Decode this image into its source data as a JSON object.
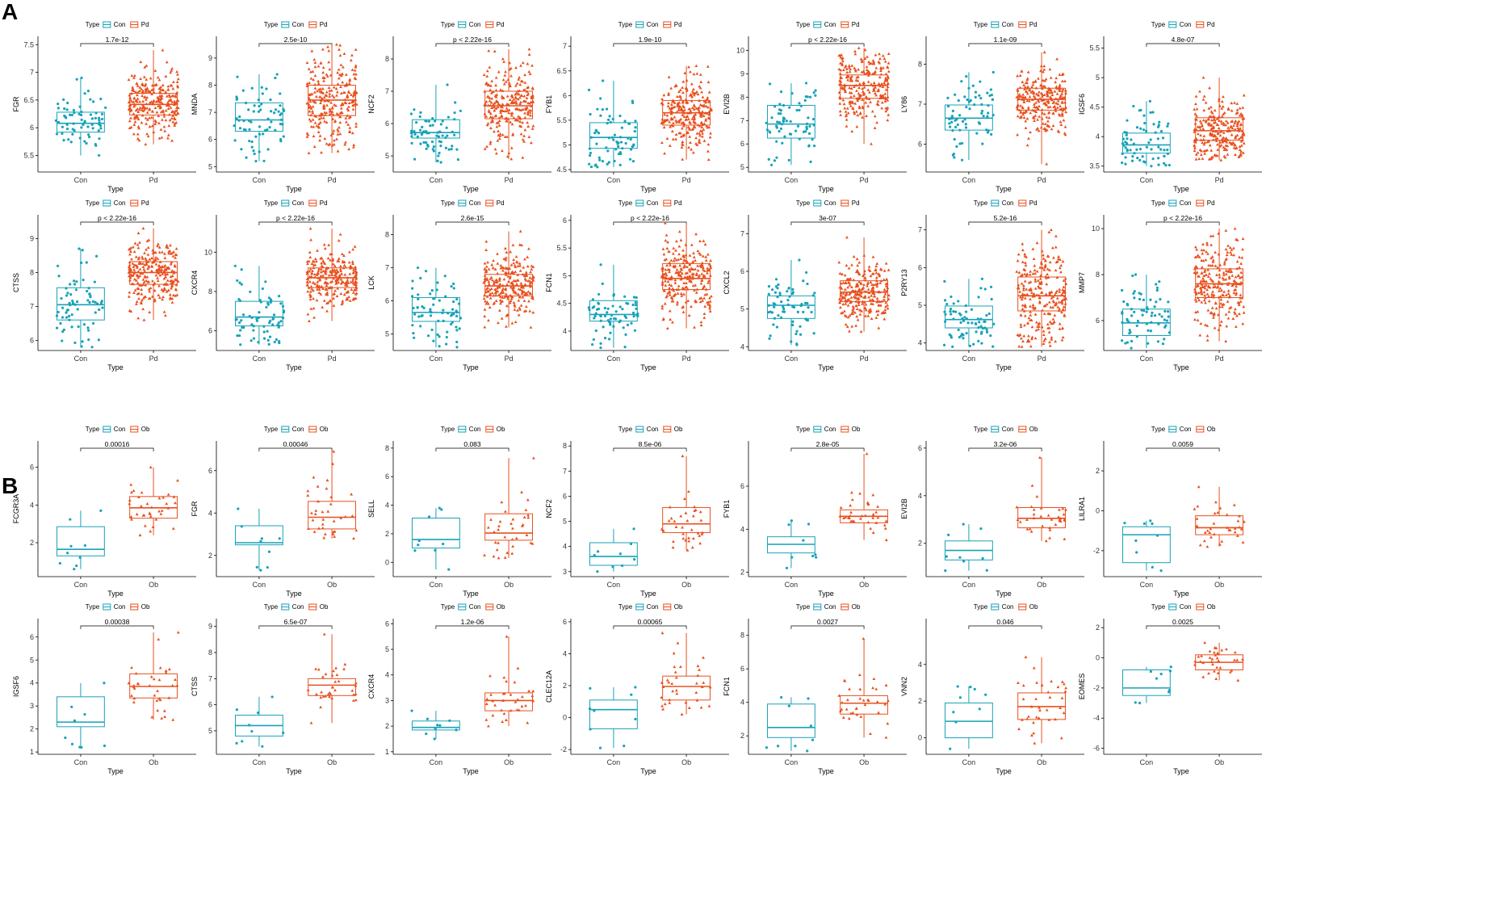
{
  "colors": {
    "con": "#17A2B8",
    "case": "#E8501E",
    "axis": "#000000"
  },
  "panels": [
    {
      "letter": "A",
      "case_label": "Pd",
      "legend_title": "Type",
      "x_title": "Type",
      "con_label": "Con"
    },
    {
      "letter": "B",
      "case_label": "Ob",
      "legend_title": "Type",
      "x_title": "Type",
      "con_label": "Con"
    }
  ],
  "chart_data": [
    {
      "type": "box",
      "panel": "A",
      "gene": "FGR",
      "pvalue": "1.7e-12",
      "yticks": [
        5.5,
        6.0,
        6.5,
        7.0,
        7.5
      ],
      "ylim": [
        5.2,
        7.65
      ],
      "groups": [
        "Con",
        "Pd"
      ],
      "con": {
        "q1": 5.92,
        "median": 6.08,
        "q3": 6.28,
        "min": 5.5,
        "max": 6.9
      },
      "case": {
        "q1": 6.23,
        "median": 6.42,
        "q3": 6.62,
        "min": 5.7,
        "max": 7.4
      },
      "n_con": 70,
      "n_case": 260
    },
    {
      "type": "box",
      "panel": "A",
      "gene": "MNDA",
      "pvalue": "2.5e-10",
      "yticks": [
        5,
        6,
        7,
        8,
        9
      ],
      "ylim": [
        4.8,
        9.8
      ],
      "groups": [
        "Con",
        "Pd"
      ],
      "con": {
        "q1": 6.3,
        "median": 6.72,
        "q3": 7.35,
        "min": 5.2,
        "max": 8.4
      },
      "case": {
        "q1": 6.88,
        "median": 7.45,
        "q3": 8.0,
        "min": 5.5,
        "max": 9.5
      },
      "n_con": 70,
      "n_case": 260
    },
    {
      "type": "box",
      "panel": "A",
      "gene": "NCF2",
      "pvalue": "p < 2.22e-16",
      "yticks": [
        5,
        6,
        7,
        8
      ],
      "ylim": [
        4.5,
        8.7
      ],
      "groups": [
        "Con",
        "Pd"
      ],
      "con": {
        "q1": 5.55,
        "median": 5.72,
        "q3": 6.12,
        "min": 4.8,
        "max": 7.2
      },
      "case": {
        "q1": 6.15,
        "median": 6.55,
        "q3": 7.0,
        "min": 4.9,
        "max": 8.3
      },
      "n_con": 70,
      "n_case": 260
    },
    {
      "type": "box",
      "panel": "A",
      "gene": "FYB1",
      "pvalue": "1.9e-10",
      "yticks": [
        4.5,
        5.0,
        5.5,
        6.0,
        6.5,
        7.0
      ],
      "ylim": [
        4.45,
        7.2
      ],
      "groups": [
        "Con",
        "Pd"
      ],
      "con": {
        "q1": 4.93,
        "median": 5.15,
        "q3": 5.45,
        "min": 4.55,
        "max": 6.3
      },
      "case": {
        "q1": 5.4,
        "median": 5.65,
        "q3": 5.9,
        "min": 4.7,
        "max": 6.6
      },
      "n_con": 70,
      "n_case": 260
    },
    {
      "type": "box",
      "panel": "A",
      "gene": "EVI2B",
      "pvalue": "p < 2.22e-16",
      "yticks": [
        5,
        6,
        7,
        8,
        9,
        10
      ],
      "ylim": [
        4.8,
        10.6
      ],
      "groups": [
        "Con",
        "Pd"
      ],
      "con": {
        "q1": 6.25,
        "median": 6.85,
        "q3": 7.65,
        "min": 5.1,
        "max": 8.6
      },
      "case": {
        "q1": 7.95,
        "median": 8.5,
        "q3": 8.95,
        "min": 6.0,
        "max": 10.1
      },
      "n_con": 70,
      "n_case": 260
    },
    {
      "type": "box",
      "panel": "A",
      "gene": "LY86",
      "pvalue": "1.1e-09",
      "yticks": [
        6,
        7,
        8
      ],
      "ylim": [
        5.3,
        8.7
      ],
      "groups": [
        "Con",
        "Pd"
      ],
      "con": {
        "q1": 6.35,
        "median": 6.65,
        "q3": 6.98,
        "min": 5.6,
        "max": 7.8
      },
      "case": {
        "q1": 6.85,
        "median": 7.12,
        "q3": 7.4,
        "min": 5.5,
        "max": 8.3
      },
      "n_con": 70,
      "n_case": 260
    },
    {
      "type": "box",
      "panel": "A",
      "gene": "IGSF6",
      "pvalue": "4.8e-07",
      "yticks": [
        3.5,
        4.0,
        4.5,
        5.0,
        5.5
      ],
      "ylim": [
        3.4,
        5.7
      ],
      "groups": [
        "Con",
        "Pd"
      ],
      "con": {
        "q1": 3.72,
        "median": 3.86,
        "q3": 4.06,
        "min": 3.5,
        "max": 4.6
      },
      "case": {
        "q1": 3.94,
        "median": 4.1,
        "q3": 4.32,
        "min": 3.6,
        "max": 5.0
      },
      "n_con": 70,
      "n_case": 260
    },
    {
      "type": "box",
      "panel": "A",
      "gene": "CTSS",
      "pvalue": "p < 2.22e-16",
      "yticks": [
        6,
        7,
        8,
        9
      ],
      "ylim": [
        5.7,
        9.7
      ],
      "groups": [
        "Con",
        "Pd"
      ],
      "con": {
        "q1": 6.6,
        "median": 7.05,
        "q3": 7.55,
        "min": 5.8,
        "max": 8.7
      },
      "case": {
        "q1": 7.65,
        "median": 8.0,
        "q3": 8.32,
        "min": 6.6,
        "max": 9.3
      },
      "n_con": 70,
      "n_case": 260
    },
    {
      "type": "box",
      "panel": "A",
      "gene": "CXCR4",
      "pvalue": "p < 2.22e-16",
      "yticks": [
        6,
        8,
        10
      ],
      "ylim": [
        5.0,
        11.9
      ],
      "groups": [
        "Con",
        "Pd"
      ],
      "con": {
        "q1": 6.25,
        "median": 6.7,
        "q3": 7.5,
        "min": 5.3,
        "max": 9.3
      },
      "case": {
        "q1": 8.2,
        "median": 8.7,
        "q3": 9.2,
        "min": 6.5,
        "max": 11.2
      },
      "n_con": 70,
      "n_case": 260
    },
    {
      "type": "box",
      "panel": "A",
      "gene": "LCK",
      "pvalue": "2.6e-15",
      "yticks": [
        5,
        6,
        7,
        8
      ],
      "ylim": [
        4.5,
        8.6
      ],
      "groups": [
        "Con",
        "Pd"
      ],
      "con": {
        "q1": 5.38,
        "median": 5.65,
        "q3": 6.1,
        "min": 4.6,
        "max": 7.0
      },
      "case": {
        "q1": 6.15,
        "median": 6.45,
        "q3": 6.8,
        "min": 5.2,
        "max": 8.1
      },
      "n_con": 70,
      "n_case": 260
    },
    {
      "type": "box",
      "panel": "A",
      "gene": "FCN1",
      "pvalue": "p < 2.22e-16",
      "yticks": [
        4.0,
        4.5,
        5.0,
        5.5,
        6.0
      ],
      "ylim": [
        3.65,
        6.1
      ],
      "groups": [
        "Con",
        "Pd"
      ],
      "con": {
        "q1": 4.18,
        "median": 4.3,
        "q3": 4.55,
        "min": 3.7,
        "max": 5.2
      },
      "case": {
        "q1": 4.75,
        "median": 4.95,
        "q3": 5.22,
        "min": 4.05,
        "max": 5.95
      },
      "n_con": 70,
      "n_case": 260
    },
    {
      "type": "box",
      "panel": "A",
      "gene": "CXCL2",
      "pvalue": "3e-07",
      "yticks": [
        4,
        5,
        6,
        7
      ],
      "ylim": [
        3.9,
        7.5
      ],
      "groups": [
        "Con",
        "Pd"
      ],
      "con": {
        "q1": 4.75,
        "median": 5.1,
        "q3": 5.35,
        "min": 4.05,
        "max": 6.3
      },
      "case": {
        "q1": 5.2,
        "median": 5.45,
        "q3": 5.75,
        "min": 4.4,
        "max": 6.9
      },
      "n_con": 70,
      "n_case": 260
    },
    {
      "type": "box",
      "panel": "A",
      "gene": "P2RY13",
      "pvalue": "5.2e-16",
      "yticks": [
        4,
        5,
        6,
        7
      ],
      "ylim": [
        3.8,
        7.4
      ],
      "groups": [
        "Con",
        "Pd"
      ],
      "con": {
        "q1": 4.4,
        "median": 4.62,
        "q3": 4.98,
        "min": 3.9,
        "max": 5.7
      },
      "case": {
        "q1": 4.85,
        "median": 5.25,
        "q3": 5.75,
        "min": 3.9,
        "max": 7.0
      },
      "n_con": 70,
      "n_case": 260
    },
    {
      "type": "box",
      "panel": "A",
      "gene": "MMP7",
      "pvalue": "p < 2.22e-16",
      "yticks": [
        6,
        8,
        10
      ],
      "ylim": [
        4.7,
        10.6
      ],
      "groups": [
        "Con",
        "Pd"
      ],
      "con": {
        "q1": 5.35,
        "median": 5.9,
        "q3": 6.5,
        "min": 4.8,
        "max": 8.0
      },
      "case": {
        "q1": 7.0,
        "median": 7.6,
        "q3": 8.25,
        "min": 5.1,
        "max": 10.0
      },
      "n_con": 70,
      "n_case": 260
    },
    {
      "type": "box",
      "panel": "B",
      "gene": "FCGR3A",
      "pvalue": "0.00016",
      "yticks": [
        2,
        4,
        6
      ],
      "ylim": [
        0.2,
        7.4
      ],
      "groups": [
        "Con",
        "Ob"
      ],
      "con": {
        "q1": 1.3,
        "median": 1.65,
        "q3": 2.85,
        "min": 0.6,
        "max": 3.7
      },
      "case": {
        "q1": 3.3,
        "median": 3.85,
        "q3": 4.45,
        "min": 2.4,
        "max": 6.0
      },
      "n_con": 9,
      "n_case": 36
    },
    {
      "type": "box",
      "panel": "B",
      "gene": "FGR",
      "pvalue": "0.00046",
      "yticks": [
        2,
        4,
        6
      ],
      "ylim": [
        1.0,
        7.4
      ],
      "groups": [
        "Con",
        "Ob"
      ],
      "con": {
        "q1": 2.5,
        "median": 2.6,
        "q3": 3.4,
        "min": 1.3,
        "max": 4.2
      },
      "case": {
        "q1": 3.25,
        "median": 3.8,
        "q3": 4.55,
        "min": 2.8,
        "max": 6.9
      },
      "n_con": 9,
      "n_case": 36
    },
    {
      "type": "box",
      "panel": "B",
      "gene": "SELL",
      "pvalue": "0.083",
      "yticks": [
        0,
        2,
        4,
        6,
        8
      ],
      "ylim": [
        -1.0,
        8.5
      ],
      "groups": [
        "Con",
        "Ob"
      ],
      "con": {
        "q1": 1.0,
        "median": 1.6,
        "q3": 3.1,
        "min": -0.5,
        "max": 3.8
      },
      "case": {
        "q1": 1.55,
        "median": 2.05,
        "q3": 3.4,
        "min": 0.3,
        "max": 7.3
      },
      "n_con": 9,
      "n_case": 36
    },
    {
      "type": "box",
      "panel": "B",
      "gene": "NCF2",
      "pvalue": "8.5e-06",
      "yticks": [
        3,
        4,
        5,
        6,
        7,
        8
      ],
      "ylim": [
        2.8,
        8.2
      ],
      "groups": [
        "Con",
        "Ob"
      ],
      "con": {
        "q1": 3.25,
        "median": 3.6,
        "q3": 4.15,
        "min": 3.0,
        "max": 4.7
      },
      "case": {
        "q1": 4.55,
        "median": 4.9,
        "q3": 5.55,
        "min": 3.85,
        "max": 7.6
      },
      "n_con": 9,
      "n_case": 36
    },
    {
      "type": "box",
      "panel": "B",
      "gene": "FYB1",
      "pvalue": "2.8e-05",
      "yticks": [
        2,
        4,
        6
      ],
      "ylim": [
        1.8,
        8.1
      ],
      "groups": [
        "Con",
        "Ob"
      ],
      "con": {
        "q1": 2.9,
        "median": 3.3,
        "q3": 3.65,
        "min": 2.2,
        "max": 4.4
      },
      "case": {
        "q1": 4.3,
        "median": 4.6,
        "q3": 4.9,
        "min": 3.5,
        "max": 7.5
      },
      "n_con": 9,
      "n_case": 36
    },
    {
      "type": "box",
      "panel": "B",
      "gene": "EVI2B",
      "pvalue": "3.2e-06",
      "yticks": [
        2,
        4,
        6
      ],
      "ylim": [
        0.6,
        6.3
      ],
      "groups": [
        "Con",
        "Ob"
      ],
      "con": {
        "q1": 1.3,
        "median": 1.7,
        "q3": 2.1,
        "min": 0.85,
        "max": 2.8
      },
      "case": {
        "q1": 2.65,
        "median": 3.05,
        "q3": 3.5,
        "min": 2.1,
        "max": 5.6
      },
      "n_con": 9,
      "n_case": 36
    },
    {
      "type": "box",
      "panel": "B",
      "gene": "LILRA1",
      "pvalue": "0.0059",
      "yticks": [
        -2,
        0,
        2
      ],
      "ylim": [
        -3.3,
        3.5
      ],
      "groups": [
        "Con",
        "Ob"
      ],
      "con": {
        "q1": -2.6,
        "median": -1.2,
        "q3": -0.8,
        "min": -3.0,
        "max": -0.5
      },
      "case": {
        "q1": -1.2,
        "median": -0.85,
        "q3": -0.25,
        "min": -1.8,
        "max": 1.2
      },
      "n_con": 9,
      "n_case": 36
    },
    {
      "type": "box",
      "panel": "B",
      "gene": "IGSF6",
      "pvalue": "0.00038",
      "yticks": [
        1,
        2,
        3,
        4,
        5,
        6
      ],
      "ylim": [
        0.9,
        6.8
      ],
      "groups": [
        "Con",
        "Ob"
      ],
      "con": {
        "q1": 2.1,
        "median": 2.3,
        "q3": 3.4,
        "min": 1.2,
        "max": 4.0
      },
      "case": {
        "q1": 3.35,
        "median": 3.85,
        "q3": 4.4,
        "min": 2.4,
        "max": 6.2
      },
      "n_con": 9,
      "n_case": 36
    },
    {
      "type": "box",
      "panel": "B",
      "gene": "CTSS",
      "pvalue": "6.5e-07",
      "yticks": [
        5,
        6,
        7,
        8,
        9
      ],
      "ylim": [
        4.1,
        9.3
      ],
      "groups": [
        "Con",
        "Ob"
      ],
      "con": {
        "q1": 4.8,
        "median": 5.2,
        "q3": 5.6,
        "min": 4.4,
        "max": 6.3
      },
      "case": {
        "q1": 6.35,
        "median": 6.75,
        "q3": 7.0,
        "min": 5.3,
        "max": 8.7
      },
      "n_con": 9,
      "n_case": 36
    },
    {
      "type": "box",
      "panel": "B",
      "gene": "CXCR4",
      "pvalue": "1.2e-06",
      "yticks": [
        1,
        2,
        3,
        4,
        5,
        6
      ],
      "ylim": [
        0.9,
        6.2
      ],
      "groups": [
        "Con",
        "Ob"
      ],
      "con": {
        "q1": 1.85,
        "median": 1.95,
        "q3": 2.2,
        "min": 1.5,
        "max": 2.6
      },
      "case": {
        "q1": 2.6,
        "median": 3.0,
        "q3": 3.3,
        "min": 2.0,
        "max": 5.5
      },
      "n_con": 9,
      "n_case": 36
    },
    {
      "type": "box",
      "panel": "B",
      "gene": "CLEC12A",
      "pvalue": "0.00065",
      "yticks": [
        -2,
        0,
        2,
        4,
        6
      ],
      "ylim": [
        -2.3,
        6.2
      ],
      "groups": [
        "Con",
        "Ob"
      ],
      "con": {
        "q1": -0.7,
        "median": 0.5,
        "q3": 1.1,
        "min": -1.9,
        "max": 1.9
      },
      "case": {
        "q1": 1.1,
        "median": 1.95,
        "q3": 2.6,
        "min": 0.2,
        "max": 5.3
      },
      "n_con": 9,
      "n_case": 36
    },
    {
      "type": "box",
      "panel": "B",
      "gene": "FCN1",
      "pvalue": "0.0027",
      "yticks": [
        2,
        4,
        6,
        8
      ],
      "ylim": [
        0.9,
        9.0
      ],
      "groups": [
        "Con",
        "Ob"
      ],
      "con": {
        "q1": 1.9,
        "median": 2.5,
        "q3": 3.9,
        "min": 1.1,
        "max": 4.3
      },
      "case": {
        "q1": 3.3,
        "median": 3.95,
        "q3": 4.4,
        "min": 1.9,
        "max": 7.8
      },
      "n_con": 9,
      "n_case": 36
    },
    {
      "type": "box",
      "panel": "B",
      "gene": "VNN2",
      "pvalue": "0.046",
      "yticks": [
        0,
        2,
        4
      ],
      "ylim": [
        -0.9,
        6.5
      ],
      "groups": [
        "Con",
        "Ob"
      ],
      "con": {
        "q1": 0.0,
        "median": 0.9,
        "q3": 1.9,
        "min": -0.6,
        "max": 2.8
      },
      "case": {
        "q1": 1.0,
        "median": 1.7,
        "q3": 2.45,
        "min": -0.3,
        "max": 4.4
      },
      "n_con": 9,
      "n_case": 36
    },
    {
      "type": "box",
      "panel": "B",
      "gene": "EOMES",
      "pvalue": "0.0025",
      "yticks": [
        -6,
        -4,
        -2,
        0,
        2
      ],
      "ylim": [
        -6.4,
        2.6
      ],
      "groups": [
        "Con",
        "Ob"
      ],
      "con": {
        "q1": -2.5,
        "median": -2.0,
        "q3": -0.8,
        "min": -3.0,
        "max": -0.6
      },
      "case": {
        "q1": -0.8,
        "median": -0.3,
        "q3": 0.2,
        "min": -1.5,
        "max": 1.0
      },
      "n_con": 9,
      "n_case": 36
    }
  ]
}
